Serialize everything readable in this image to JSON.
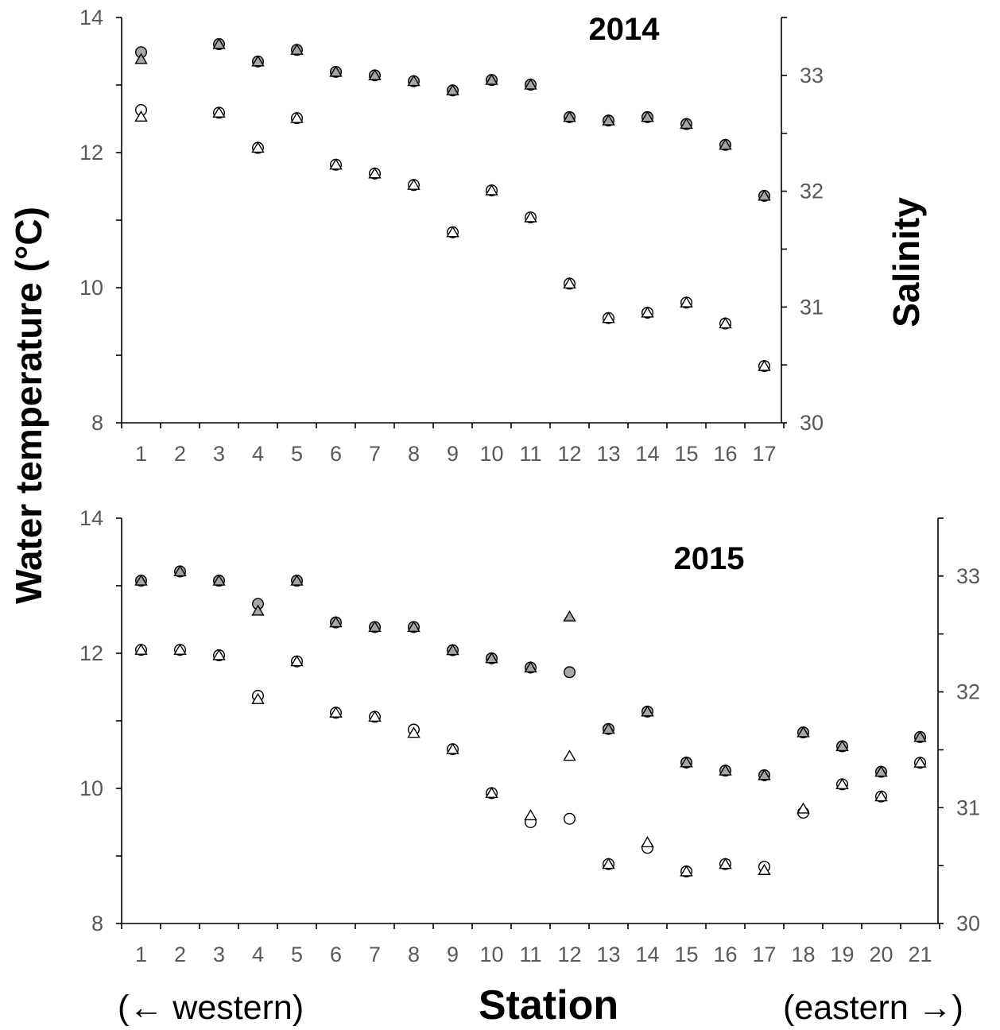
{
  "chart_data": [
    {
      "type": "scatter",
      "title": "2014",
      "ylabel": "Water temperature (°C)",
      "y2label": "Salinity",
      "ylim": [
        8,
        14
      ],
      "y2lim": [
        30,
        33.5
      ],
      "yticks": [
        "8",
        "10",
        "12",
        "14"
      ],
      "y2ticks": [
        "30",
        "31",
        "32",
        "33"
      ],
      "categories": [
        "1",
        "2",
        "3",
        "4",
        "5",
        "6",
        "7",
        "8",
        "9",
        "10",
        "11",
        "12",
        "13",
        "14",
        "15",
        "16",
        "17"
      ],
      "grid": false,
      "series": [
        {
          "axis": "right",
          "marker": "circle",
          "fill": "#a6a6a6",
          "values": [
            33.2,
            null,
            33.27,
            33.12,
            33.22,
            33.03,
            33.0,
            32.95,
            32.87,
            32.96,
            32.92,
            32.64,
            32.61,
            32.64,
            32.58,
            32.4,
            31.96
          ]
        },
        {
          "axis": "right",
          "marker": "triangle",
          "fill": "#a6a6a6",
          "values": [
            33.14,
            null,
            33.27,
            33.12,
            33.22,
            33.03,
            33.0,
            32.95,
            32.87,
            32.96,
            32.92,
            32.64,
            32.61,
            32.64,
            32.58,
            32.4,
            31.96
          ]
        },
        {
          "axis": "left",
          "marker": "circle",
          "fill": "#ffffff",
          "values": [
            12.63,
            null,
            12.59,
            12.07,
            12.51,
            11.82,
            11.69,
            11.52,
            10.82,
            11.44,
            11.04,
            10.06,
            9.55,
            9.63,
            9.78,
            9.47,
            8.84
          ]
        },
        {
          "axis": "left",
          "marker": "triangle",
          "fill": "#ffffff",
          "values": [
            12.53,
            null,
            12.59,
            12.07,
            12.51,
            11.82,
            11.69,
            11.52,
            10.82,
            11.44,
            11.04,
            10.06,
            9.55,
            9.63,
            9.78,
            9.47,
            8.84
          ]
        }
      ]
    },
    {
      "type": "scatter",
      "title": "2015",
      "ylabel": "Water temperature (°C)",
      "y2label": "Salinity",
      "ylim": [
        8,
        14
      ],
      "y2lim": [
        30,
        33.5
      ],
      "yticks": [
        "8",
        "10",
        "12",
        "14"
      ],
      "y2ticks": [
        "30",
        "31",
        "32",
        "33"
      ],
      "categories": [
        "1",
        "2",
        "3",
        "4",
        "5",
        "6",
        "7",
        "8",
        "9",
        "10",
        "11",
        "12",
        "13",
        "14",
        "15",
        "16",
        "17",
        "18",
        "19",
        "20",
        "21"
      ],
      "xlabel": "Station",
      "x_direction_left": "(← western)",
      "x_direction_right": "(eastern →)",
      "grid": false,
      "series": [
        {
          "axis": "right",
          "marker": "circle",
          "fill": "#a6a6a6",
          "values": [
            32.96,
            33.04,
            32.96,
            32.76,
            32.96,
            32.6,
            32.56,
            32.56,
            32.36,
            32.29,
            32.21,
            32.17,
            31.68,
            31.83,
            31.39,
            31.32,
            31.28,
            31.65,
            31.53,
            31.31,
            31.61
          ]
        },
        {
          "axis": "right",
          "marker": "triangle",
          "fill": "#a6a6a6",
          "values": [
            32.96,
            33.04,
            32.96,
            32.7,
            32.96,
            32.6,
            32.56,
            32.56,
            32.36,
            32.29,
            32.21,
            32.65,
            31.68,
            31.83,
            31.39,
            31.32,
            31.28,
            31.65,
            31.53,
            31.31,
            31.61
          ]
        },
        {
          "axis": "left",
          "marker": "circle",
          "fill": "#ffffff",
          "values": [
            12.05,
            12.05,
            11.97,
            11.37,
            11.88,
            11.12,
            11.06,
            10.87,
            10.58,
            9.93,
            9.5,
            9.55,
            8.88,
            9.12,
            8.77,
            8.88,
            8.84,
            9.64,
            10.06,
            9.88,
            10.38
          ]
        },
        {
          "axis": "left",
          "marker": "triangle",
          "fill": "#ffffff",
          "values": [
            12.05,
            12.05,
            11.97,
            11.32,
            11.88,
            11.12,
            11.06,
            10.82,
            10.58,
            9.93,
            9.6,
            10.48,
            8.88,
            9.2,
            8.77,
            8.88,
            8.79,
            9.7,
            10.06,
            9.88,
            10.38
          ]
        }
      ]
    }
  ]
}
